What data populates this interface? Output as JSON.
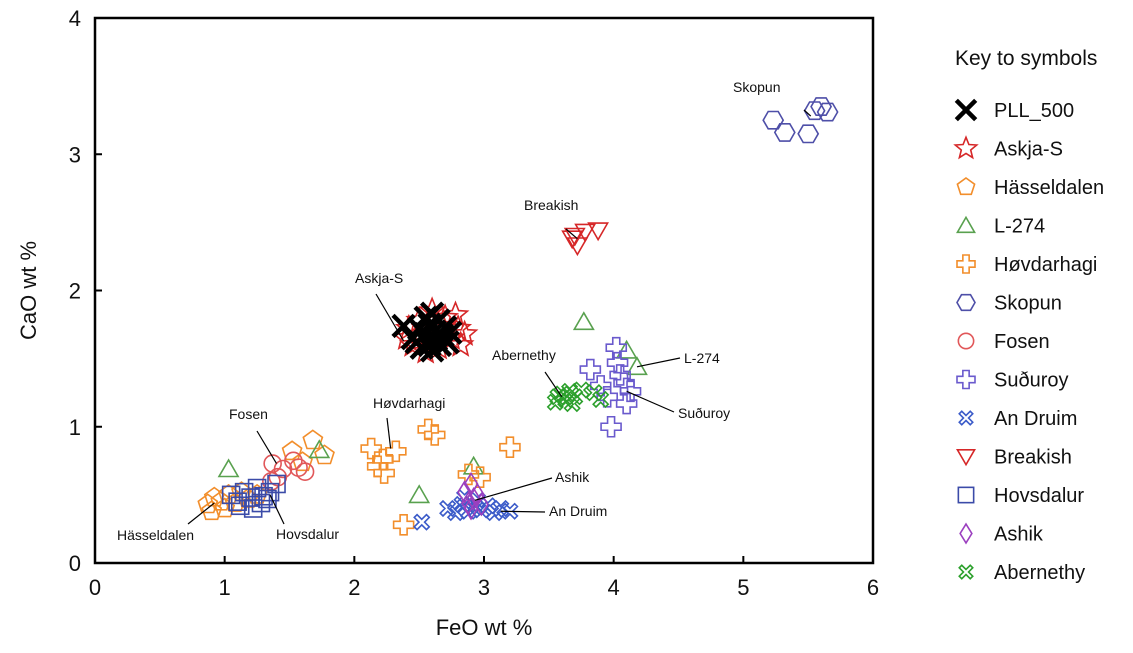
{
  "chart_data": {
    "type": "scatter",
    "xlabel": "FeO wt %",
    "ylabel": "CaO wt %",
    "xlim": [
      0,
      6
    ],
    "ylim": [
      0,
      4
    ],
    "xticks": [
      0,
      1,
      2,
      3,
      4,
      5,
      6
    ],
    "yticks": [
      0,
      1,
      2,
      3,
      4
    ],
    "grid": false,
    "legend_title": "Key to symbols",
    "legend_position": "right",
    "series": [
      {
        "name": "PLL_500",
        "marker": "x-bold",
        "color": "#000000",
        "points": [
          [
            2.38,
            1.74
          ],
          [
            2.45,
            1.65
          ],
          [
            2.5,
            1.72
          ],
          [
            2.52,
            1.58
          ],
          [
            2.55,
            1.68
          ],
          [
            2.57,
            1.62
          ],
          [
            2.58,
            1.75
          ],
          [
            2.6,
            1.56
          ],
          [
            2.62,
            1.7
          ],
          [
            2.63,
            1.64
          ],
          [
            2.65,
            1.78
          ],
          [
            2.66,
            1.6
          ],
          [
            2.68,
            1.67
          ],
          [
            2.7,
            1.73
          ],
          [
            2.72,
            1.62
          ],
          [
            2.74,
            1.69
          ],
          [
            2.55,
            1.8
          ],
          [
            2.6,
            1.83
          ],
          [
            2.48,
            1.62
          ],
          [
            2.58,
            1.6
          ]
        ]
      },
      {
        "name": "Askja-S",
        "marker": "star",
        "color": "#d62728",
        "points": [
          [
            2.4,
            1.65
          ],
          [
            2.45,
            1.6
          ],
          [
            2.5,
            1.78
          ],
          [
            2.55,
            1.55
          ],
          [
            2.6,
            1.85
          ],
          [
            2.65,
            1.58
          ],
          [
            2.7,
            1.8
          ],
          [
            2.75,
            1.65
          ],
          [
            2.8,
            1.72
          ],
          [
            2.82,
            1.6
          ],
          [
            2.5,
            1.66
          ],
          [
            2.68,
            1.74
          ],
          [
            2.78,
            1.82
          ],
          [
            2.42,
            1.72
          ],
          [
            2.85,
            1.68
          ],
          [
            2.6,
            1.62
          ]
        ]
      },
      {
        "name": "Hässeldalen",
        "marker": "pentagon",
        "color": "#f28e2b",
        "points": [
          [
            0.87,
            0.43
          ],
          [
            0.92,
            0.48
          ],
          [
            0.97,
            0.45
          ],
          [
            1.03,
            0.5
          ],
          [
            1.08,
            0.44
          ],
          [
            1.13,
            0.52
          ],
          [
            1.18,
            0.47
          ],
          [
            1.0,
            0.4
          ],
          [
            0.9,
            0.38
          ],
          [
            1.25,
            0.5
          ],
          [
            1.52,
            0.82
          ],
          [
            1.6,
            0.74
          ],
          [
            1.68,
            0.9
          ],
          [
            1.77,
            0.79
          ]
        ]
      },
      {
        "name": "L-274",
        "marker": "triangle-up",
        "color": "#59a14f",
        "points": [
          [
            1.03,
            0.69
          ],
          [
            1.73,
            0.83
          ],
          [
            2.5,
            0.5
          ],
          [
            2.92,
            0.71
          ],
          [
            3.77,
            1.77
          ],
          [
            4.18,
            1.44
          ],
          [
            4.1,
            1.56
          ]
        ]
      },
      {
        "name": "Høvdarhagi",
        "marker": "cross",
        "color": "#f28e2b",
        "points": [
          [
            2.13,
            0.84
          ],
          [
            2.18,
            0.71
          ],
          [
            2.22,
            0.76
          ],
          [
            2.23,
            0.66
          ],
          [
            2.32,
            0.82
          ],
          [
            2.57,
            0.98
          ],
          [
            2.62,
            0.94
          ],
          [
            3.2,
            0.85
          ],
          [
            2.38,
            0.28
          ],
          [
            2.88,
            0.65
          ],
          [
            2.97,
            0.63
          ]
        ]
      },
      {
        "name": "Skopun",
        "marker": "hexagon",
        "color": "#4e4fa8",
        "points": [
          [
            5.23,
            3.25
          ],
          [
            5.32,
            3.16
          ],
          [
            5.5,
            3.15
          ],
          [
            5.55,
            3.32
          ],
          [
            5.6,
            3.35
          ],
          [
            5.65,
            3.31
          ]
        ]
      },
      {
        "name": "Fosen",
        "marker": "circle",
        "color": "#e15759",
        "points": [
          [
            1.37,
            0.73
          ],
          [
            1.45,
            0.69
          ],
          [
            1.53,
            0.75
          ],
          [
            1.57,
            0.7
          ],
          [
            1.62,
            0.67
          ],
          [
            1.36,
            0.6
          ],
          [
            1.41,
            0.63
          ]
        ]
      },
      {
        "name": "Suðuroy",
        "marker": "cross",
        "color": "#6a5acd",
        "points": [
          [
            3.82,
            1.42
          ],
          [
            3.9,
            1.3
          ],
          [
            3.95,
            1.22
          ],
          [
            4.02,
            1.58
          ],
          [
            4.05,
            1.38
          ],
          [
            4.08,
            1.32
          ],
          [
            4.13,
            1.26
          ],
          [
            4.03,
            1.47
          ],
          [
            3.98,
            1.0
          ],
          [
            4.1,
            1.17
          ]
        ]
      },
      {
        "name": "An Druim",
        "marker": "x",
        "color": "#3b5bc9",
        "points": [
          [
            2.52,
            0.3
          ],
          [
            2.72,
            0.4
          ],
          [
            2.78,
            0.37
          ],
          [
            2.83,
            0.43
          ],
          [
            2.88,
            0.38
          ],
          [
            2.93,
            0.41
          ],
          [
            2.98,
            0.39
          ],
          [
            3.03,
            0.42
          ],
          [
            3.08,
            0.37
          ],
          [
            3.13,
            0.4
          ],
          [
            3.2,
            0.38
          ],
          [
            2.95,
            0.46
          ],
          [
            2.85,
            0.48
          ]
        ]
      },
      {
        "name": "Breakish",
        "marker": "triangle-down",
        "color": "#d62728",
        "points": [
          [
            3.68,
            2.38
          ],
          [
            3.72,
            2.33
          ],
          [
            3.78,
            2.43
          ],
          [
            3.88,
            2.44
          ],
          [
            3.7,
            2.4
          ]
        ]
      },
      {
        "name": "Hovsdalur",
        "marker": "square",
        "color": "#3b4ba8",
        "points": [
          [
            1.05,
            0.5
          ],
          [
            1.1,
            0.45
          ],
          [
            1.15,
            0.52
          ],
          [
            1.2,
            0.48
          ],
          [
            1.25,
            0.55
          ],
          [
            1.3,
            0.49
          ],
          [
            1.35,
            0.52
          ],
          [
            1.4,
            0.58
          ],
          [
            1.12,
            0.42
          ],
          [
            1.22,
            0.4
          ],
          [
            1.28,
            0.44
          ],
          [
            1.33,
            0.47
          ]
        ]
      },
      {
        "name": "Ashik",
        "marker": "diamond",
        "color": "#9b3fbf",
        "points": [
          [
            2.85,
            0.52
          ],
          [
            2.88,
            0.44
          ],
          [
            2.9,
            0.58
          ],
          [
            2.92,
            0.47
          ],
          [
            2.95,
            0.5
          ],
          [
            2.98,
            0.43
          ],
          [
            2.9,
            0.4
          ]
        ]
      },
      {
        "name": "Abernethy",
        "marker": "x",
        "color": "#2ca02c",
        "points": [
          [
            3.55,
            1.18
          ],
          [
            3.6,
            1.24
          ],
          [
            3.63,
            1.2
          ],
          [
            3.66,
            1.26
          ],
          [
            3.7,
            1.22
          ],
          [
            3.75,
            1.27
          ],
          [
            3.57,
            1.22
          ],
          [
            3.85,
            1.25
          ],
          [
            3.9,
            1.2
          ],
          [
            3.68,
            1.17
          ]
        ]
      }
    ],
    "annotations": [
      {
        "text": "Skopun",
        "x": 5.52,
        "y": 3.28
      },
      {
        "text": "Breakish",
        "x": 3.72,
        "y": 2.38
      },
      {
        "text": "Askja-S",
        "x": 2.38,
        "y": 1.63
      },
      {
        "text": "Abernethy",
        "x": 3.6,
        "y": 1.22
      },
      {
        "text": "L-274",
        "x": 4.18,
        "y": 1.44
      },
      {
        "text": "Suðuroy",
        "x": 4.1,
        "y": 1.26
      },
      {
        "text": "Høvdarhagi",
        "x": 2.28,
        "y": 0.84
      },
      {
        "text": "Fosen",
        "x": 1.4,
        "y": 0.73
      },
      {
        "text": "Ashik",
        "x": 2.93,
        "y": 0.46
      },
      {
        "text": "An Druim",
        "x": 3.13,
        "y": 0.38
      },
      {
        "text": "Hässeldalen",
        "x": 0.92,
        "y": 0.44
      },
      {
        "text": "Hovsdalur",
        "x": 1.35,
        "y": 0.5
      }
    ]
  }
}
